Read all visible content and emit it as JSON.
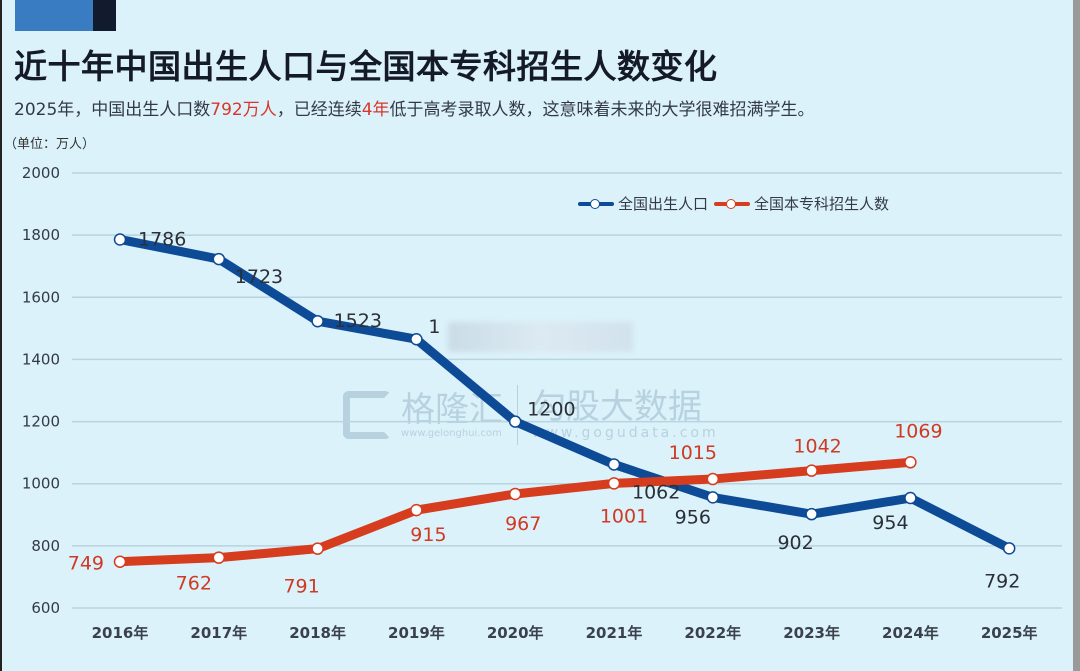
{
  "header": {
    "title": "近十年中国出生人口与全国本专科招生人数变化",
    "subtitle_parts": [
      "2025年，中国出生人口数",
      "792万人",
      "，已经连续",
      "4年",
      "低于高考录取人数，这意味着未来的大学很难招满学生。"
    ],
    "unit": "（单位：万人）"
  },
  "legend": {
    "births": "全国出生人口",
    "enrollment": "全国本专科招生人数"
  },
  "watermark": {
    "brand": "格隆汇",
    "brand_url": "www.gelonghui.com",
    "product": "勾股大数据",
    "product_url": "www.gogudata.com"
  },
  "colors": {
    "births": "#0d4b96",
    "enrollment": "#d63c1e",
    "background": "#dcf2fb"
  },
  "chart_data": {
    "type": "line",
    "title": "近十年中国出生人口与全国本专科招生人数变化",
    "subtitle": "2025年，中国出生人口数792万人，已经连续4年低于高考录取人数，这意味着未来的大学很难招满学生。",
    "xlabel": "",
    "ylabel": "单位：万人",
    "x": [
      "2016年",
      "2017年",
      "2018年",
      "2019年",
      "2020年",
      "2021年",
      "2022年",
      "2023年",
      "2024年",
      "2025年"
    ],
    "yticks": [
      600,
      800,
      1000,
      1200,
      1400,
      1600,
      1800,
      2000
    ],
    "ylim": [
      600,
      2000
    ],
    "grid": true,
    "legend_position": "top-right",
    "series": [
      {
        "name": "全国出生人口",
        "color": "#0d4b96",
        "values": [
          1786,
          1723,
          1523,
          1465,
          1200,
          1062,
          956,
          902,
          954,
          792
        ],
        "labels": [
          "1786",
          "1723",
          "1523",
          "1",
          "1200",
          "1062",
          "956",
          "902",
          "954",
          "792"
        ]
      },
      {
        "name": "全国本专科招生人数",
        "color": "#d63c1e",
        "values": [
          749,
          762,
          791,
          915,
          967,
          1001,
          1015,
          1042,
          1069,
          null
        ],
        "labels": [
          "749",
          "762",
          "791",
          "915",
          "967",
          "1001",
          "1015",
          "1042",
          "1069",
          ""
        ]
      }
    ],
    "annotations": [
      "2019年出生人口数据标签被遮挡（仅可见“1”）"
    ]
  }
}
